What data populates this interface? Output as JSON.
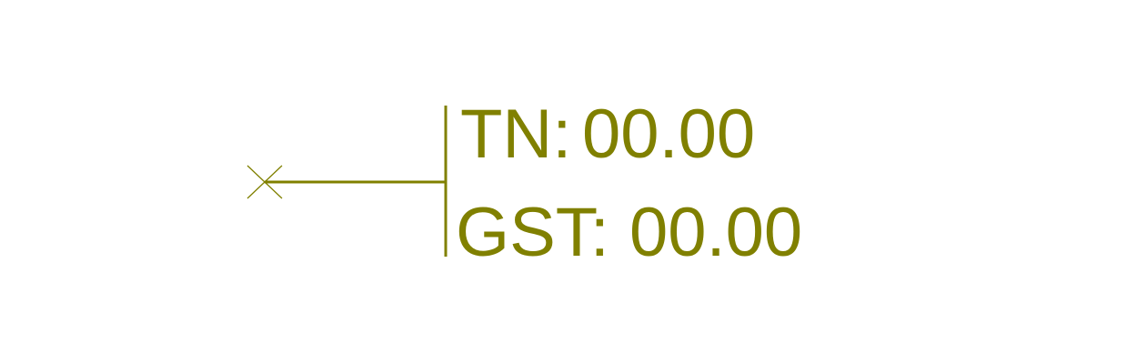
{
  "colors": {
    "annotation": "#808000",
    "background": "#ffffff"
  },
  "annotation": {
    "leader_marker": "x-mark",
    "rows": [
      {
        "label": "TN:",
        "value": "00.00"
      },
      {
        "label": "GST:",
        "value": "00.00"
      }
    ]
  }
}
